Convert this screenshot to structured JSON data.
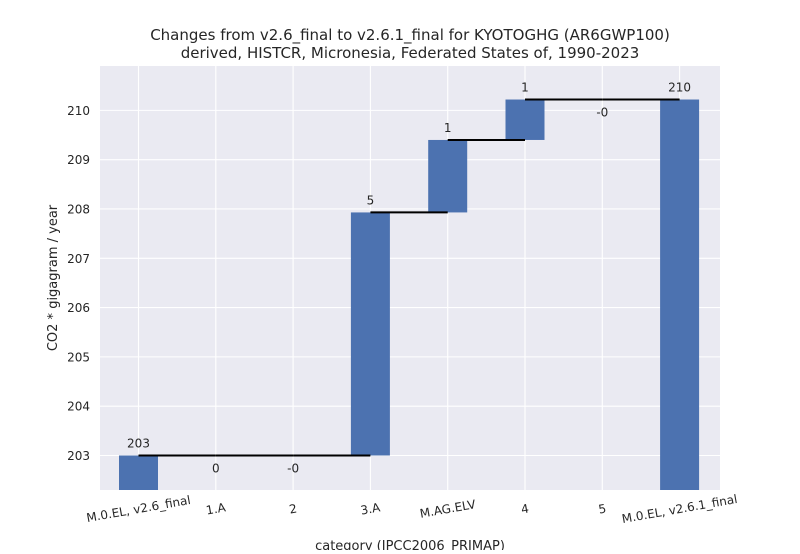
{
  "chart_data": {
    "type": "waterfall",
    "title_line1": "Changes from v2.6_final to v2.6.1_final for KYOTOGHG (AR6GWP100)",
    "title_line2": "derived, HISTCR, Micronesia, Federated States of, 1990-2023",
    "xlabel": "category (IPCC2006_PRIMAP)",
    "ylabel": "CO2 * gigagram / year",
    "ylim": [
      202.3,
      210.9
    ],
    "yticks": [
      203,
      204,
      205,
      206,
      207,
      208,
      209,
      210
    ],
    "categories": [
      "M.0.EL, v2.6_final",
      "1.A",
      "2",
      "3.A",
      "M.AG.ELV",
      "4",
      "5",
      "M.0.EL, v2.6.1_final"
    ],
    "bars": [
      {
        "label": "203",
        "base": 202.3,
        "top": 203.0,
        "kind": "total"
      },
      {
        "label": "0",
        "base": 203.0,
        "top": 203.0,
        "kind": "delta"
      },
      {
        "label": "-0",
        "base": 203.0,
        "top": 203.0,
        "kind": "delta"
      },
      {
        "label": "5",
        "base": 203.0,
        "top": 207.93,
        "kind": "delta"
      },
      {
        "label": "1",
        "base": 207.93,
        "top": 209.4,
        "kind": "delta"
      },
      {
        "label": "1",
        "base": 209.4,
        "top": 210.22,
        "kind": "delta"
      },
      {
        "label": "-0",
        "base": 210.22,
        "top": 210.22,
        "kind": "delta"
      },
      {
        "label": "210",
        "base": 202.3,
        "top": 210.22,
        "kind": "total"
      }
    ],
    "bar_color": "#4c72b0",
    "grid": true,
    "background": "#eaeaf2"
  }
}
